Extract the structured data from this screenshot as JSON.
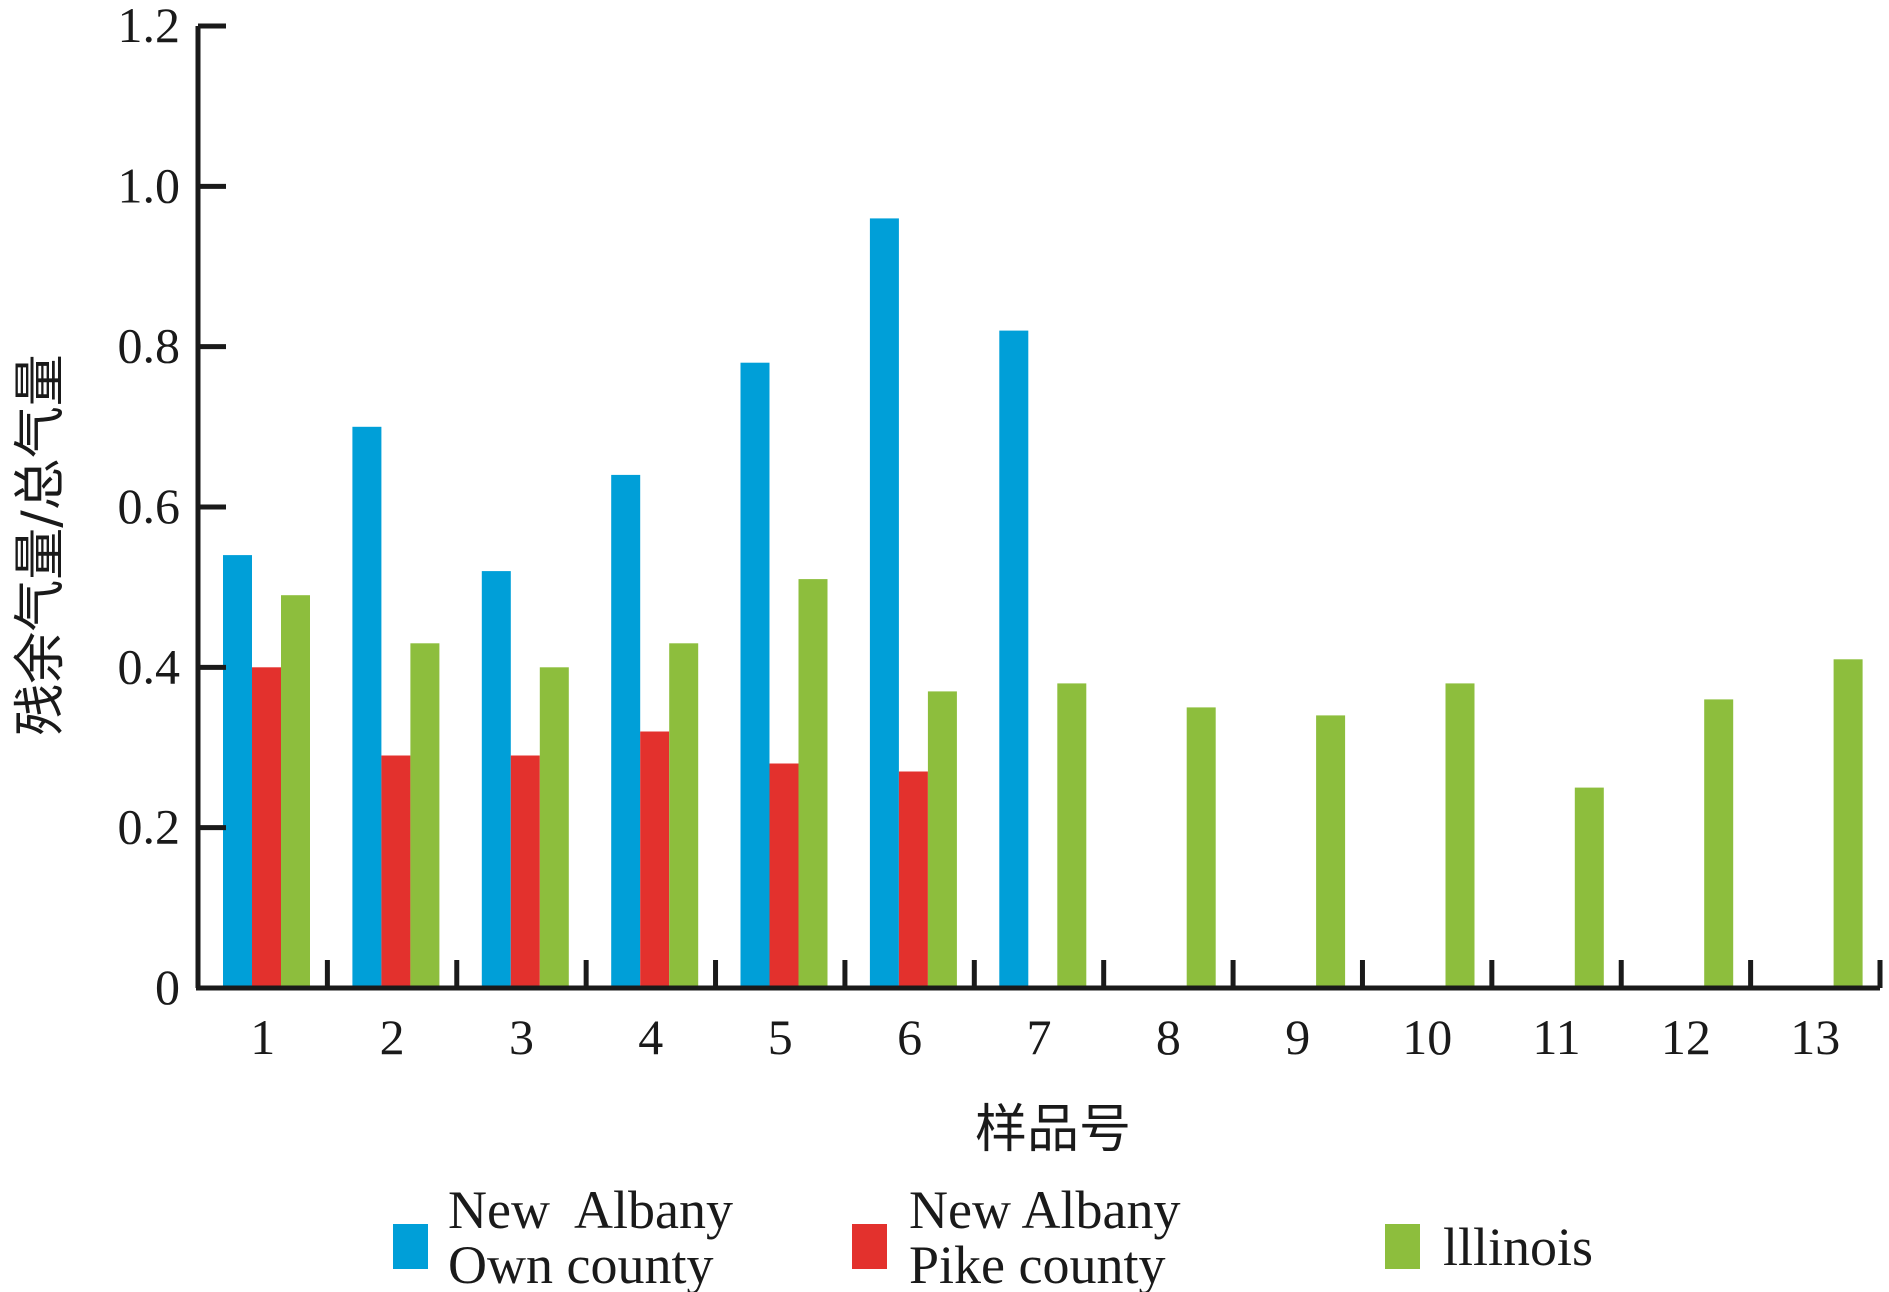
{
  "chart_data": {
    "type": "bar",
    "title": "",
    "xlabel": "样品号",
    "ylabel": "残余气量/总气量",
    "ylim": [
      0,
      1.2
    ],
    "yticks": [
      "0",
      "0.2",
      "0.4",
      "0.6",
      "0.8",
      "1.0",
      "1.2"
    ],
    "categories": [
      "1",
      "2",
      "3",
      "4",
      "5",
      "6",
      "7",
      "8",
      "9",
      "10",
      "11",
      "12",
      "13"
    ],
    "series": [
      {
        "name_lines": [
          "New  Albany",
          "Own county"
        ],
        "color": "#009fd8",
        "values": [
          0.54,
          0.7,
          0.52,
          0.64,
          0.78,
          0.96,
          0.82,
          null,
          null,
          null,
          null,
          null,
          null
        ]
      },
      {
        "name_lines": [
          "New Albany",
          "Pike county"
        ],
        "color": "#e3312d",
        "values": [
          0.4,
          0.29,
          0.29,
          0.32,
          0.28,
          0.27,
          null,
          null,
          null,
          null,
          null,
          null,
          null
        ]
      },
      {
        "name_lines": [
          "lllinois"
        ],
        "color": "#8dbe3d",
        "values": [
          0.49,
          0.43,
          0.4,
          0.43,
          0.51,
          0.37,
          0.38,
          0.35,
          0.34,
          0.38,
          0.25,
          0.36,
          0.41
        ]
      }
    ],
    "grid": false,
    "legend_position": "bottom"
  }
}
